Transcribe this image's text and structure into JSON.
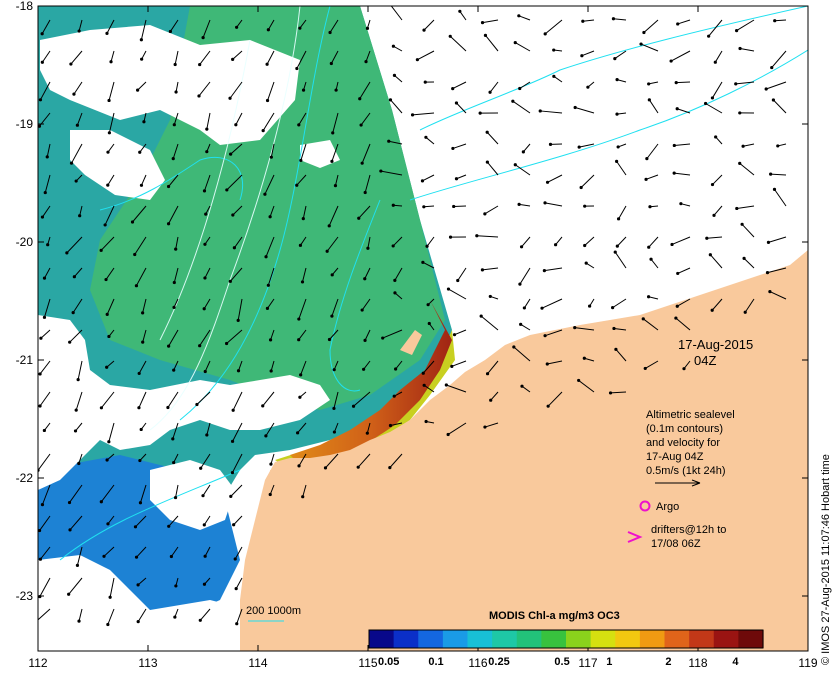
{
  "map": {
    "title": "MODIS Chl-a mg/m3 OC3",
    "date_line": "17-Aug-2015",
    "time_line": "04Z",
    "credit": "© IMOS 27-Aug-2015 11:07:46 Hobart time",
    "x_ticks": [
      "112",
      "113",
      "114",
      "115",
      "116",
      "117",
      "118",
      "119"
    ],
    "y_ticks": [
      "-18",
      "-19",
      "-20",
      "-21",
      "-22",
      "-23"
    ]
  },
  "legend": {
    "altimetric_lines": [
      "Altimetric sealevel",
      "(0.1m contours)",
      "and velocity for",
      "17-Aug 04Z",
      "0.5m/s (1kt 24h)"
    ],
    "argo_label": "Argo",
    "drifters_lines": [
      "drifters@12h to",
      "17/08 06Z"
    ],
    "depth_label": "200  1000m"
  },
  "colorbar": {
    "ticks": [
      "0.05",
      "0.1",
      "0.25",
      "0.5",
      "1",
      "2",
      "4"
    ],
    "colors": [
      "#08088a",
      "#0b2fc8",
      "#1467e0",
      "#1a9be6",
      "#18c0d6",
      "#1ec8a6",
      "#22c27a",
      "#38c23e",
      "#8ad21c",
      "#d6e010",
      "#f2c810",
      "#f09a12",
      "#e0641a",
      "#c23818",
      "#9a1412",
      "#6e0a0a"
    ]
  },
  "colors": {
    "land": "#f9c99c",
    "water_green": "#3fb877",
    "water_teal": "#2aa7a4",
    "water_blue": "#1d82d4",
    "contour": "#20e0f0",
    "marker": "#ee11cc"
  }
}
